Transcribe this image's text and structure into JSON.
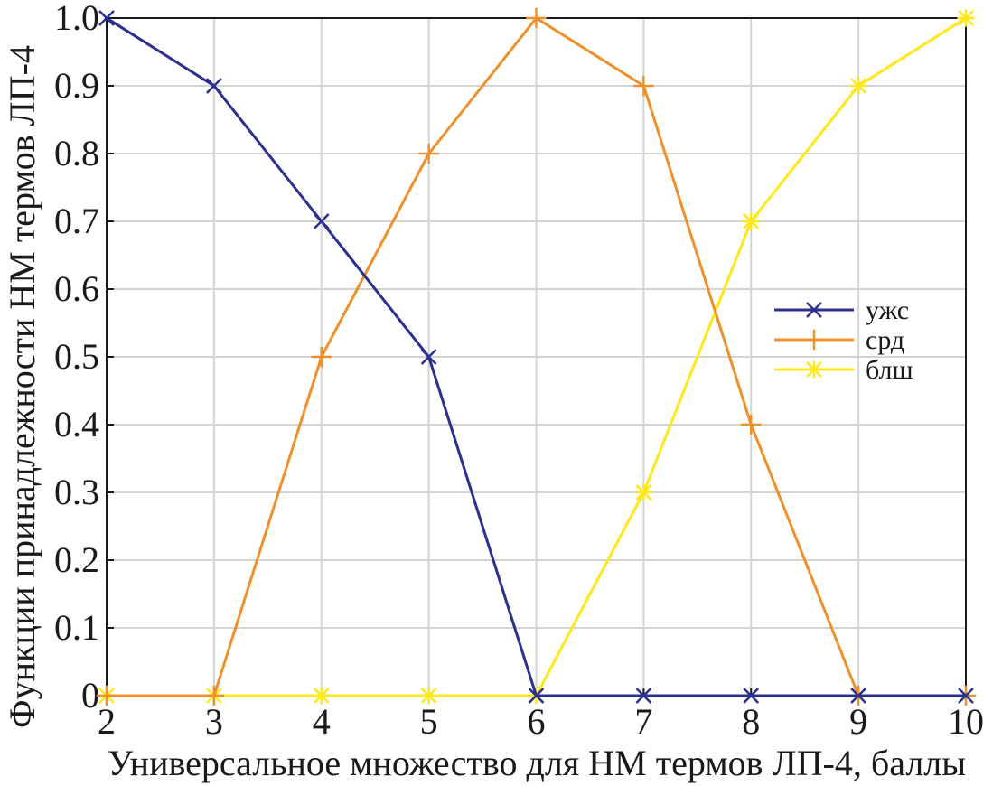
{
  "chart_data": {
    "type": "line",
    "title": "",
    "xlabel": "Универсальное множество для НМ термов ЛП-4, баллы",
    "ylabel": "Функции принадлежности НМ термов ЛП-4",
    "x": [
      2,
      3,
      4,
      5,
      6,
      7,
      8,
      9,
      10
    ],
    "xlim": [
      2,
      10
    ],
    "ylim": [
      0,
      1
    ],
    "x_ticks": [
      "2",
      "3",
      "4",
      "5",
      "6",
      "7",
      "8",
      "9",
      "10"
    ],
    "y_ticks": [
      "0",
      "0.1",
      "0.2",
      "0.3",
      "0.4",
      "0.5",
      "0.6",
      "0.7",
      "0.8",
      "0.9",
      "1.0"
    ],
    "grid": true,
    "legend_position": "right",
    "series": [
      {
        "name": "ужс",
        "values": [
          1.0,
          0.9,
          0.7,
          0.5,
          0,
          0,
          0,
          0,
          0
        ],
        "color": "#2b2f8f",
        "marker": "x"
      },
      {
        "name": "срд",
        "values": [
          0,
          0,
          0.5,
          0.8,
          1.0,
          0.9,
          0.4,
          0,
          0
        ],
        "color": "#f0902a",
        "marker": "+"
      },
      {
        "name": "блш",
        "values": [
          0,
          0,
          0,
          0,
          0,
          0.3,
          0.7,
          0.9,
          1.0
        ],
        "color": "#ffe81a",
        "marker": "*"
      }
    ]
  }
}
